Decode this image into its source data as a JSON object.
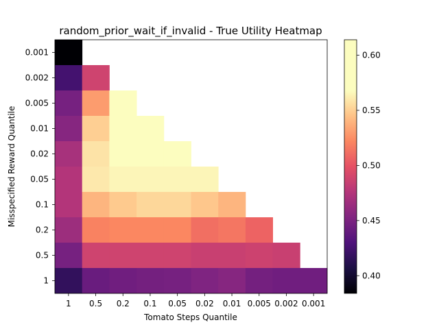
{
  "chart_data": {
    "type": "heatmap",
    "title": "random_prior_wait_if_invalid - True Utility Heatmap",
    "xlabel": "Tomato Steps Quantile",
    "ylabel": "Misspecified Reward Quantile",
    "x_categories": [
      "1",
      "0.5",
      "0.2",
      "0.1",
      "0.05",
      "0.02",
      "0.01",
      "0.005",
      "0.002",
      "0.001"
    ],
    "y_categories": [
      "0.001",
      "0.002",
      "0.005",
      "0.01",
      "0.02",
      "0.05",
      "0.1",
      "0.2",
      "0.5",
      "1"
    ],
    "values": [
      [
        0.384,
        null,
        null,
        null,
        null,
        null,
        null,
        null,
        null,
        null
      ],
      [
        0.425,
        0.488,
        null,
        null,
        null,
        null,
        null,
        null,
        null,
        null
      ],
      [
        0.448,
        0.53,
        0.605,
        null,
        null,
        null,
        null,
        null,
        null,
        null
      ],
      [
        0.455,
        0.55,
        0.612,
        0.608,
        null,
        null,
        null,
        null,
        null,
        null
      ],
      [
        0.47,
        0.558,
        0.592,
        0.59,
        0.603,
        null,
        null,
        null,
        null,
        null
      ],
      [
        0.475,
        0.56,
        0.565,
        0.565,
        0.565,
        0.565,
        null,
        null,
        null,
        null
      ],
      [
        0.475,
        0.54,
        0.548,
        0.553,
        0.553,
        0.547,
        0.54,
        null,
        null,
        null
      ],
      [
        0.465,
        0.52,
        0.522,
        0.522,
        0.522,
        0.512,
        0.515,
        0.507,
        null,
        null
      ],
      [
        0.448,
        0.488,
        0.488,
        0.488,
        0.488,
        0.485,
        0.485,
        0.487,
        0.485,
        null
      ],
      [
        0.417,
        0.442,
        0.445,
        0.447,
        0.448,
        0.452,
        0.455,
        0.447,
        0.445,
        0.445
      ]
    ],
    "colormap": "magma",
    "vmin": 0.384,
    "vmax": 0.614,
    "colorbar_ticks": [
      0.4,
      0.45,
      0.5,
      0.55,
      0.6
    ],
    "colorbar_tick_labels": [
      "0.40",
      "0.45",
      "0.50",
      "0.55",
      "0.60"
    ],
    "grid": false
  }
}
